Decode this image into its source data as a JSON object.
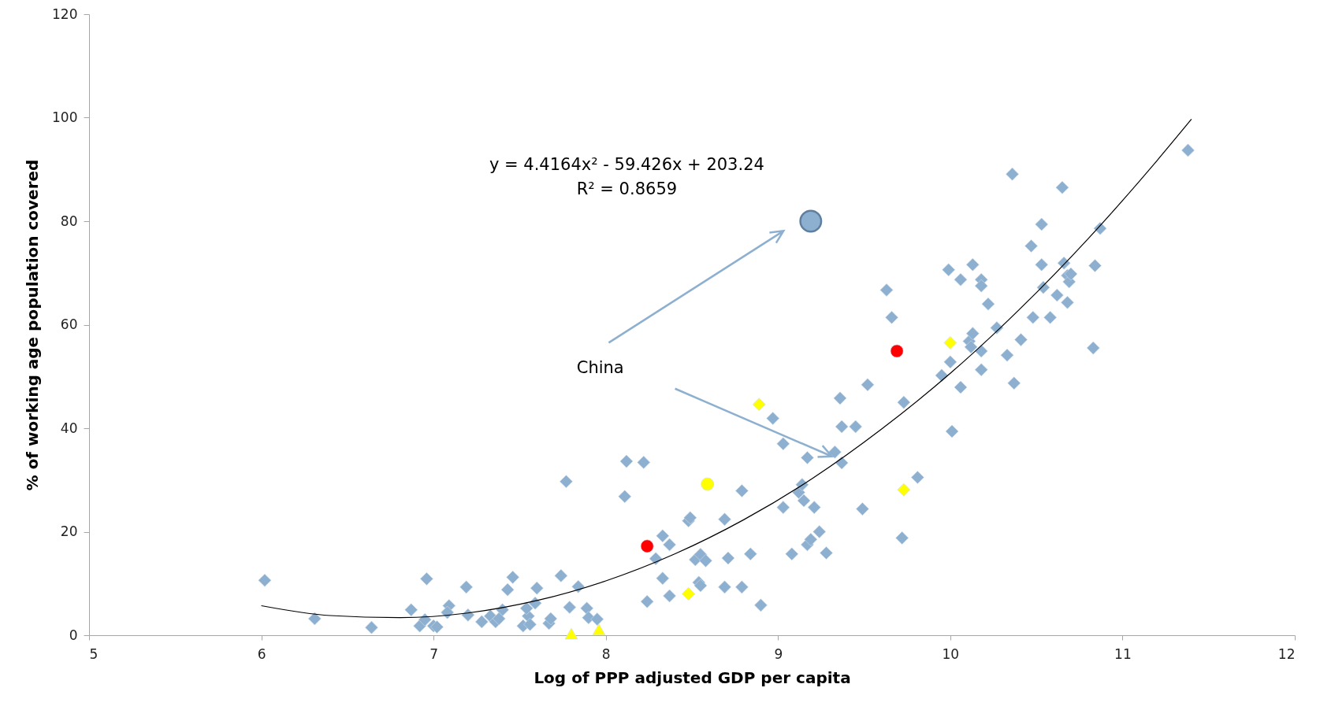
{
  "chart_data": {
    "type": "scatter",
    "xlabel": "Log of PPP adjusted GDP per capita",
    "ylabel": "% of working age population covered",
    "xlim": [
      5,
      12
    ],
    "xticks": [
      5,
      6,
      7,
      8,
      9,
      10,
      11,
      12
    ],
    "ylim": [
      0,
      120
    ],
    "yticks": [
      0,
      20,
      40,
      60,
      80,
      100,
      120
    ],
    "annotations": [
      "y = 4.4164x² - 59.426x + 203.24",
      "R² = 0.8659",
      "China"
    ],
    "series": [
      {
        "type": "scatter",
        "marker": "diamond",
        "color": "#8eb0d0",
        "x": [
          6.02,
          6.31,
          6.64,
          6.87,
          6.96,
          6.92,
          6.95,
          7.0,
          7.02,
          7.09,
          7.08,
          7.19,
          7.2,
          7.28,
          7.33,
          7.36,
          7.4,
          7.43,
          7.46,
          7.38,
          7.52,
          7.55,
          7.56,
          7.59,
          7.6,
          7.54,
          7.67,
          7.68,
          7.74,
          7.77,
          7.79,
          7.84,
          7.89,
          7.9,
          7.95,
          8.12,
          8.11,
          8.22,
          8.24,
          8.29,
          8.33,
          8.33,
          8.37,
          8.37,
          8.48,
          8.49,
          8.52,
          8.55,
          8.54,
          8.55,
          8.58,
          8.69,
          8.69,
          8.71,
          8.79,
          8.79,
          8.84,
          8.9,
          8.97,
          9.03,
          9.03,
          9.08,
          9.12,
          9.14,
          9.15,
          9.17,
          9.17,
          9.19,
          9.21,
          9.24,
          9.28,
          9.33,
          9.36,
          9.37,
          9.37,
          9.45,
          9.49,
          9.52,
          9.63,
          9.66,
          9.73,
          9.72,
          9.81,
          9.95,
          9.99,
          10.0,
          10.01,
          10.06,
          10.06,
          10.11,
          10.12,
          10.13,
          10.13,
          10.18,
          10.18,
          10.18,
          10.18,
          10.22,
          10.27,
          10.33,
          10.36,
          10.37,
          10.41,
          10.47,
          10.48,
          10.53,
          10.53,
          10.54,
          10.58,
          10.62,
          10.65,
          10.66,
          10.68,
          10.69,
          10.68,
          10.7,
          10.83,
          10.84,
          10.87,
          11.38
        ],
        "values": [
          10.6,
          3.2,
          1.5,
          4.9,
          10.9,
          1.8,
          3,
          1.8,
          1.6,
          5.7,
          4.4,
          9.3,
          3.9,
          2.6,
          3.7,
          2.6,
          4.9,
          8.8,
          11.2,
          3.2,
          1.8,
          3.7,
          2.1,
          6.2,
          9.1,
          5.2,
          2.3,
          3.2,
          11.5,
          29.7,
          5.4,
          9.4,
          5.2,
          3.4,
          3.1,
          33.6,
          26.8,
          33.4,
          6.5,
          14.8,
          19.2,
          11.0,
          17.5,
          7.6,
          22.1,
          22.7,
          14.6,
          15.6,
          10.2,
          9.6,
          14.4,
          9.3,
          22.4,
          14.9,
          27.9,
          9.3,
          15.7,
          5.8,
          41.9,
          37.0,
          24.7,
          15.7,
          27.6,
          29.1,
          26.0,
          34.3,
          17.5,
          18.5,
          24.7,
          20.0,
          15.9,
          35.4,
          45.8,
          40.3,
          33.3,
          40.3,
          24.4,
          48.4,
          66.7,
          61.4,
          45.0,
          18.8,
          30.5,
          50.2,
          70.6,
          52.8,
          39.4,
          68.7,
          47.9,
          56.8,
          55.7,
          58.3,
          71.6,
          68.7,
          67.5,
          54.9,
          51.3,
          64.0,
          59.4,
          54.1,
          89.1,
          48.7,
          57.1,
          75.2,
          61.4,
          71.6,
          79.4,
          67.2,
          61.4,
          65.7,
          86.5,
          71.9,
          69.5,
          68.3,
          64.3,
          69.8,
          55.5,
          71.4,
          78.6,
          93.7
        ]
      },
      {
        "type": "scatter",
        "marker": "diamond",
        "color": "#ffff00",
        "x": [
          8.89,
          8.48,
          10.0,
          9.73
        ],
        "values": [
          44.6,
          8.0,
          56.5,
          28.1
        ]
      },
      {
        "type": "scatter",
        "marker": "circle",
        "color": "#ff0000",
        "x": [
          8.24,
          9.69
        ],
        "values": [
          17.2,
          54.9
        ]
      },
      {
        "type": "scatter",
        "marker": "circle",
        "color": "#ffff00",
        "x": [
          8.59
        ],
        "values": [
          29.2
        ]
      },
      {
        "type": "scatter",
        "marker": "triangle",
        "color": "#ffff00",
        "x": [
          7.8,
          7.96
        ],
        "values": [
          0.3,
          1.1
        ]
      },
      {
        "type": "bubble",
        "marker": "circle",
        "color": "#8eb0d0",
        "x": [
          9.19
        ],
        "values": [
          80.0
        ],
        "sizes": [
          1
        ]
      },
      {
        "type": "line",
        "color": "#000000",
        "x": [
          6.0,
          6.4,
          6.8,
          7.2,
          7.6,
          8.0,
          8.4,
          8.8,
          9.2,
          9.6,
          10.0,
          10.4,
          10.8,
          11.2,
          11.4
        ],
        "values": [
          5.7,
          3.8,
          3.4,
          4.3,
          6.7,
          10.5,
          15.7,
          22.3,
          30.3,
          39.8,
          50.6,
          62.9,
          76.6,
          91.7,
          99.7
        ]
      }
    ]
  }
}
